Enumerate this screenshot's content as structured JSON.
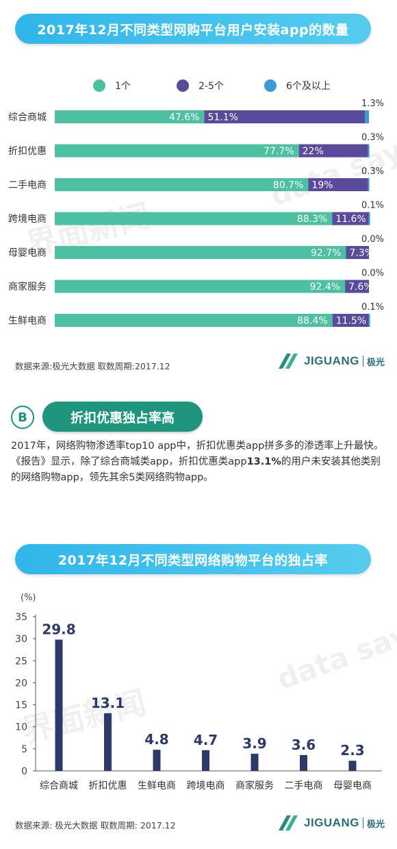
{
  "title1": "2017年12月不同类型网购平台用户安装app的数量",
  "legend": [
    {
      "label": "1个",
      "color": "#4dc0a2"
    },
    {
      "label": "2-5个",
      "color": "#5a4a9c"
    },
    {
      "label": "6个及以上",
      "color": "#3a9bd5"
    }
  ],
  "chart_data": [
    {
      "type": "bar",
      "orientation": "horizontal",
      "stacked": true,
      "title": "2017年12月不同类型网购平台用户安装app的数量",
      "categories": [
        "综合商城",
        "折扣优惠",
        "二手电商",
        "跨境电商",
        "母婴电商",
        "商家服务",
        "生鲜电商"
      ],
      "series": [
        {
          "name": "1个",
          "values": [
            47.6,
            77.7,
            80.7,
            88.3,
            92.7,
            92.4,
            88.4
          ],
          "labels": [
            "47.6%",
            "77.7%",
            "80.7%",
            "88.3%",
            "92.7%",
            "92.4%",
            "88.4%"
          ]
        },
        {
          "name": "2-5个",
          "values": [
            51.1,
            22,
            19,
            11.6,
            7.3,
            7.6,
            11.5
          ],
          "labels": [
            "51.1%",
            "22%",
            "19%",
            "11.6%",
            "7.3%",
            "7.6%",
            "11.5%"
          ]
        },
        {
          "name": "6个及以上",
          "values": [
            1.3,
            0.3,
            0.3,
            0.1,
            0.0,
            0.0,
            0.1
          ],
          "labels": [
            "1.3%",
            "0.3%",
            "0.3%",
            "0.1%",
            "0.0%",
            "0.0%",
            "0.1%"
          ]
        }
      ],
      "xlim": [
        0,
        100
      ],
      "legend_position": "top"
    },
    {
      "type": "bar",
      "title": "2017年12月不同类型网络购物平台的独占率",
      "categories": [
        "综合商城",
        "折扣优惠",
        "生鲜电商",
        "跨境电商",
        "商家服务",
        "二手电商",
        "母婴电商"
      ],
      "values": [
        29.8,
        13.1,
        4.8,
        4.7,
        3.9,
        3.6,
        2.3
      ],
      "value_labels": [
        "29.8",
        "13.1",
        "4.8",
        "4.7",
        "3.9",
        "3.6",
        "2.3"
      ],
      "ylabel": "(%)",
      "ylim": [
        0,
        35
      ],
      "yticks": [
        0,
        5,
        10,
        15,
        20,
        25,
        30,
        35
      ],
      "bar_color": "#2b3a67"
    }
  ],
  "source1": "数据来源:极光大数据      取数周期:2017.12",
  "logo": {
    "name": "JIGUANG",
    "cn": "极光"
  },
  "section": {
    "badge": "B",
    "title": "折扣优惠独占率高"
  },
  "paragraph": {
    "before": "2017年，网络购物渗透率top10 app中，折扣优惠类app拼多多的渗透率上升最快。《报告》显示，除了综合商城类app，折扣优惠类app",
    "highlight": "13.1%",
    "after": "的用户未安装其他类别的网络购物app，领先其余5类网络购物app。"
  },
  "title2": "2017年12月不同类型网络购物平台的独占率",
  "source2": "数据来源: 极光大数据     取数周期: 2017.12",
  "watermark": {
    "text1": "界面新闻",
    "text2": "data says"
  }
}
